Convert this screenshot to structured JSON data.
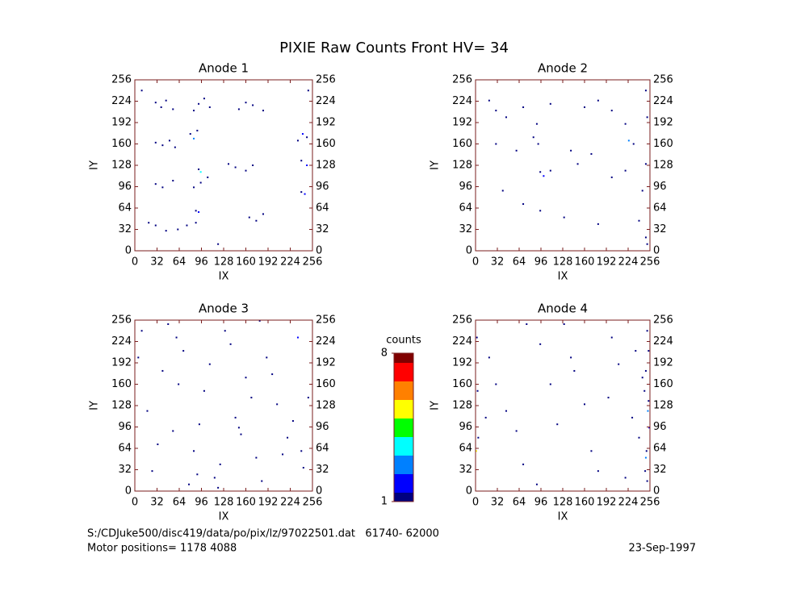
{
  "title": "PIXIE Raw Counts Front HV= 34",
  "chart_data": [
    {
      "type": "scatter",
      "title": "Anode 1",
      "xlabel": "IX",
      "ylabel": "IY",
      "xlim": [
        0,
        256
      ],
      "ylim": [
        0,
        256
      ],
      "xticks": [
        0,
        32,
        64,
        96,
        128,
        160,
        192,
        224,
        256
      ],
      "yticks": [
        0,
        32,
        64,
        96,
        128,
        160,
        192,
        224,
        256
      ],
      "x": [
        30,
        38,
        45,
        55,
        85,
        92,
        100,
        108,
        150,
        160,
        170,
        185,
        235,
        242,
        248,
        80,
        85,
        90,
        30,
        40,
        50,
        58,
        92,
        95,
        135,
        145,
        160,
        170,
        240,
        248,
        30,
        40,
        55,
        85,
        95,
        105,
        240,
        245,
        88,
        92,
        165,
        175,
        185,
        20,
        30,
        45,
        62,
        75,
        88,
        10,
        250,
        120
      ],
      "y": [
        222,
        215,
        225,
        212,
        210,
        220,
        228,
        215,
        212,
        222,
        218,
        210,
        165,
        175,
        170,
        175,
        168,
        180,
        162,
        158,
        165,
        155,
        122,
        118,
        130,
        125,
        120,
        128,
        135,
        128,
        100,
        95,
        105,
        95,
        102,
        110,
        88,
        85,
        60,
        58,
        50,
        45,
        55,
        42,
        38,
        30,
        32,
        38,
        42,
        240,
        240,
        10
      ],
      "counts": [
        1,
        1,
        1,
        1,
        1,
        1,
        1,
        1,
        1,
        1,
        1,
        1,
        1,
        2,
        1,
        1,
        3,
        1,
        1,
        1,
        1,
        1,
        1,
        4,
        1,
        1,
        1,
        1,
        1,
        2,
        1,
        1,
        1,
        1,
        1,
        1,
        1,
        2,
        1,
        2,
        1,
        1,
        1,
        1,
        1,
        1,
        1,
        1,
        1,
        1,
        1,
        1
      ]
    },
    {
      "type": "scatter",
      "title": "Anode 2",
      "xlabel": "IX",
      "ylabel": "IY",
      "xlim": [
        0,
        256
      ],
      "ylim": [
        0,
        256
      ],
      "xticks": [
        0,
        32,
        64,
        96,
        128,
        160,
        192,
        224,
        256
      ],
      "yticks": [
        0,
        32,
        64,
        96,
        128,
        160,
        192,
        224,
        256
      ],
      "x": [
        20,
        30,
        45,
        70,
        90,
        110,
        160,
        180,
        200,
        220,
        250,
        252,
        30,
        60,
        85,
        92,
        140,
        170,
        225,
        232,
        250,
        95,
        100,
        110,
        150,
        200,
        220,
        245,
        40,
        70,
        95,
        130,
        180,
        240,
        250,
        252
      ],
      "y": [
        225,
        210,
        200,
        215,
        190,
        220,
        215,
        225,
        210,
        190,
        240,
        200,
        160,
        150,
        170,
        160,
        150,
        145,
        165,
        160,
        130,
        118,
        112,
        120,
        130,
        110,
        120,
        90,
        90,
        70,
        60,
        50,
        40,
        45,
        20,
        10
      ],
      "counts": [
        1,
        1,
        1,
        1,
        1,
        1,
        1,
        1,
        1,
        1,
        1,
        1,
        1,
        1,
        1,
        1,
        1,
        1,
        3,
        1,
        1,
        1,
        2,
        1,
        1,
        1,
        1,
        1,
        1,
        1,
        1,
        1,
        1,
        1,
        1,
        1
      ]
    },
    {
      "type": "scatter",
      "title": "Anode 3",
      "xlabel": "IX",
      "ylabel": "IY",
      "xlim": [
        0,
        256
      ],
      "ylim": [
        0,
        256
      ],
      "xticks": [
        0,
        32,
        64,
        96,
        128,
        160,
        192,
        224,
        256
      ],
      "yticks": [
        0,
        32,
        64,
        96,
        128,
        160,
        192,
        224,
        256
      ],
      "x": [
        10,
        25,
        40,
        55,
        70,
        85,
        100,
        115,
        130,
        145,
        160,
        175,
        190,
        205,
        220,
        235,
        250,
        18,
        33,
        48,
        63,
        78,
        93,
        108,
        123,
        138,
        153,
        168,
        183,
        198,
        213,
        228,
        243,
        5,
        60,
        120,
        180,
        240,
        90,
        150
      ],
      "y": [
        240,
        30,
        180,
        90,
        210,
        60,
        150,
        20,
        240,
        110,
        170,
        50,
        200,
        130,
        80,
        230,
        140,
        120,
        70,
        250,
        160,
        10,
        100,
        190,
        40,
        220,
        85,
        140,
        15,
        175,
        55,
        105,
        35,
        200,
        230,
        5,
        255,
        60,
        25,
        95
      ],
      "counts": [
        1,
        1,
        1,
        1,
        1,
        1,
        1,
        1,
        1,
        1,
        1,
        1,
        1,
        1,
        1,
        2,
        1,
        1,
        1,
        1,
        1,
        1,
        1,
        1,
        1,
        1,
        1,
        1,
        1,
        1,
        1,
        1,
        1,
        1,
        1,
        1,
        1,
        1,
        1,
        1
      ]
    },
    {
      "type": "scatter",
      "title": "Anode 4",
      "xlabel": "IX",
      "ylabel": "IY",
      "xlim": [
        0,
        256
      ],
      "ylim": [
        0,
        256
      ],
      "xticks": [
        0,
        32,
        64,
        96,
        128,
        160,
        192,
        224,
        256
      ],
      "yticks": [
        0,
        32,
        64,
        96,
        128,
        160,
        192,
        224,
        256
      ],
      "x": [
        252,
        254,
        250,
        248,
        253,
        255,
        251,
        249,
        2,
        3,
        1,
        20,
        45,
        70,
        95,
        120,
        145,
        170,
        195,
        220,
        235,
        240,
        30,
        60,
        90,
        130,
        160,
        200,
        230,
        245,
        15,
        110,
        180,
        250,
        254,
        252,
        4,
        75,
        140,
        210
      ],
      "y": [
        240,
        210,
        180,
        150,
        120,
        95,
        60,
        30,
        230,
        150,
        60,
        200,
        120,
        40,
        220,
        100,
        180,
        60,
        140,
        20,
        210,
        80,
        160,
        90,
        10,
        250,
        130,
        230,
        110,
        170,
        110,
        160,
        30,
        50,
        135,
        15,
        80,
        250,
        200,
        190
      ],
      "counts": [
        1,
        1,
        1,
        1,
        3,
        2,
        1,
        1,
        1,
        1,
        5,
        1,
        1,
        1,
        1,
        1,
        1,
        1,
        1,
        1,
        1,
        1,
        1,
        1,
        1,
        1,
        1,
        1,
        1,
        1,
        1,
        1,
        1,
        3,
        1,
        1,
        1,
        1,
        1,
        1
      ]
    }
  ],
  "colorbar": {
    "label": "counts",
    "clim": [
      1,
      8
    ],
    "ticks": [
      1,
      8
    ],
    "colors": [
      "#000080",
      "#0000ff",
      "#0080ff",
      "#00ffff",
      "#00ff00",
      "#ffff00",
      "#ff8000",
      "#ff0000",
      "#800000"
    ]
  },
  "footer": {
    "file": "S:/CDJuke500/disc419/data/po/pix/lz/97022501.dat   61740- 62000",
    "motor": "Motor positions= 1178 4088",
    "date": "23-Sep-1997"
  }
}
